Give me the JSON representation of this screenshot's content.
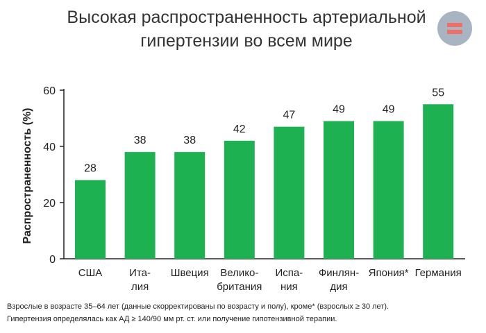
{
  "title_lines": [
    "Высокая распространенность артериальной",
    "гипертензии во всем мире"
  ],
  "chart_data": {
    "type": "bar",
    "title": "Высокая распространенность артериальной гипертензии во всем мире",
    "ylabel": "Распространенность (%)",
    "xlabel": "",
    "ylim": [
      0,
      60
    ],
    "yticks": [
      0,
      20,
      40,
      60
    ],
    "categories": [
      [
        "США"
      ],
      [
        "Ита-",
        "лия"
      ],
      [
        "Швеция"
      ],
      [
        "Велико-",
        "британия"
      ],
      [
        "Испа-",
        "ния"
      ],
      [
        "Финлян-",
        "дия"
      ],
      [
        "Япония*"
      ],
      [
        "Германия"
      ]
    ],
    "values": [
      28,
      38,
      38,
      42,
      47,
      49,
      49,
      55
    ],
    "data_labels": [
      "28",
      "38",
      "38",
      "42",
      "47",
      "49",
      "49",
      "55"
    ],
    "bar_color": "#1db151",
    "grid": false
  },
  "footnote": [
    "Взрослые в возрасте 35–64 лет (данные скорректированы по возрасту и полу), кроме* (взрослых ≥ 30 лет).",
    "Гипертензия определялась как АД ≥ 140/90 мм рт. ст. или получение гипотензивной терапии."
  ],
  "colors": {
    "badge_bg": "#a9b4c3",
    "badge_bars": "#ef6f67",
    "axis": "#222222"
  }
}
